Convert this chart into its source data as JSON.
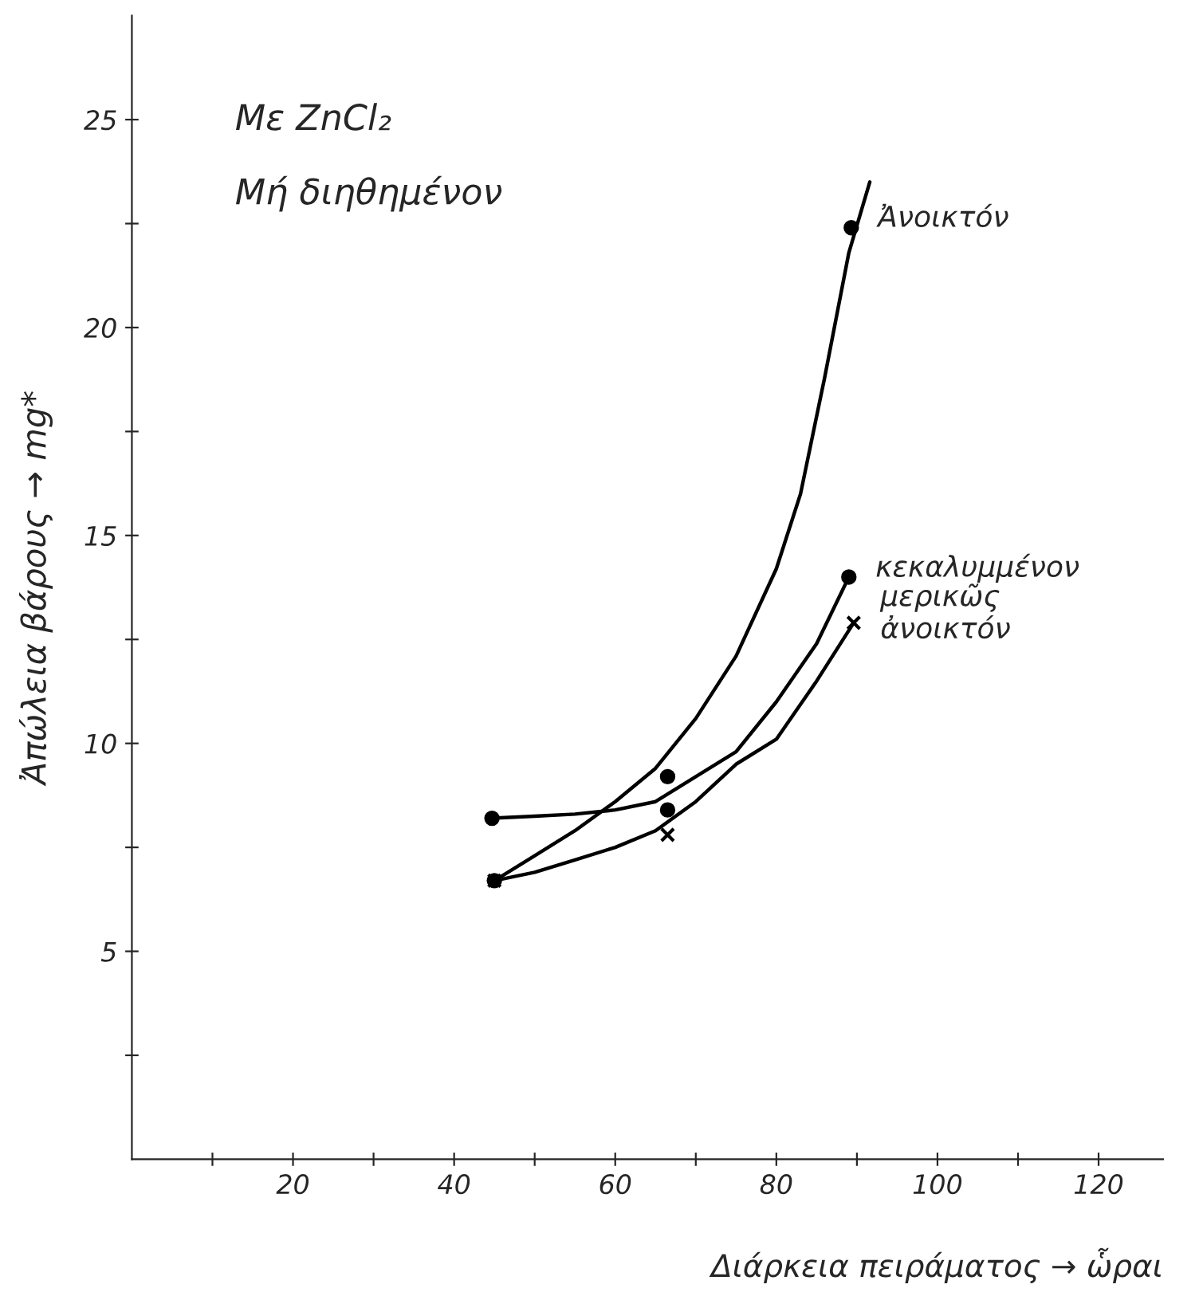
{
  "chart_data": {
    "type": "line",
    "xlabel": "Διάρκεια πειράματος → ὧραι",
    "ylabel": "Ἀπώλεια βάρους → mg*",
    "annotations": [
      "Με ZnCl₂",
      "Μή διηθημένον"
    ],
    "xlim": [
      0,
      128
    ],
    "ylim": [
      0,
      27.5
    ],
    "xticks": [
      {
        "value": 10,
        "label": null
      },
      20,
      {
        "value": 30,
        "label": null
      },
      40,
      {
        "value": 50,
        "label": null
      },
      60,
      {
        "value": 70,
        "label": null
      },
      80,
      {
        "value": 90,
        "label": null
      },
      100,
      {
        "value": 110,
        "label": null
      },
      120
    ],
    "yticks": [
      {
        "value": 2.5,
        "label": null
      },
      5,
      {
        "value": 7.5,
        "label": null
      },
      10,
      {
        "value": 12.5,
        "label": null
      },
      15,
      {
        "value": 17.5,
        "label": null
      },
      20,
      {
        "value": 22.5,
        "label": null
      },
      25
    ],
    "series": [
      {
        "color": "#000000",
        "x": [
          45,
          50,
          55,
          60,
          65,
          70,
          75,
          80,
          83,
          86,
          89,
          91.6
        ],
        "values": [
          6.7,
          7.3,
          7.9,
          8.6,
          9.4,
          10.6,
          12.1,
          14.2,
          16.0,
          18.8,
          21.8,
          23.5
        ]
      },
      {
        "color": "#000000",
        "x": [
          44.7,
          50,
          55,
          60,
          65,
          70,
          75,
          80,
          85,
          89
        ],
        "values": [
          8.2,
          8.25,
          8.3,
          8.4,
          8.6,
          9.2,
          9.8,
          11.0,
          12.4,
          14.0
        ]
      },
      {
        "color": "#000000",
        "x": [
          45,
          50,
          55,
          60,
          65,
          70,
          75,
          80,
          85,
          89.6
        ],
        "values": [
          6.7,
          6.9,
          7.2,
          7.5,
          7.9,
          8.6,
          9.5,
          10.1,
          11.5,
          12.9
        ]
      },
      {
        "type": "scatter",
        "name": "Ἀνοικτόν",
        "color": "#000000",
        "marker": "circle",
        "x": [
          45,
          66.5,
          89.3
        ],
        "values": [
          6.7,
          9.2,
          22.4
        ]
      },
      {
        "type": "scatter",
        "name": "κεκαλυμμένον",
        "color": "#000000",
        "marker": "circle",
        "x": [
          44.7,
          66.5,
          89
        ],
        "values": [
          8.2,
          8.4,
          14.0
        ]
      },
      {
        "type": "scatter",
        "name": "μερικῶς\nἀνοικτόν",
        "color": "#000000",
        "marker": "cross",
        "x": [
          45,
          66.5,
          89.6
        ],
        "values": [
          6.7,
          7.8,
          12.9
        ]
      }
    ]
  }
}
